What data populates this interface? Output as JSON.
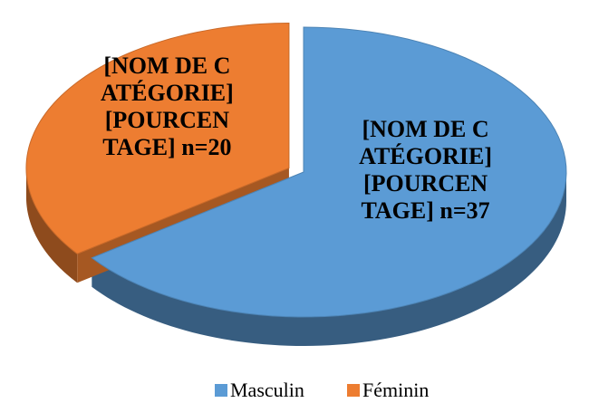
{
  "chart_data": {
    "type": "pie",
    "categories": [
      "Masculin",
      "Féminin"
    ],
    "values": [
      37,
      20
    ],
    "value_labels": [
      "[NOM DE CATÉGORIE] [POURCENTAGE] n=37",
      "[NOM DE CATÉGORIE] [POURCENTAGE] n=20"
    ],
    "colors": [
      "#5b9bd5",
      "#ed7d31"
    ],
    "legend": "bottom"
  }
}
